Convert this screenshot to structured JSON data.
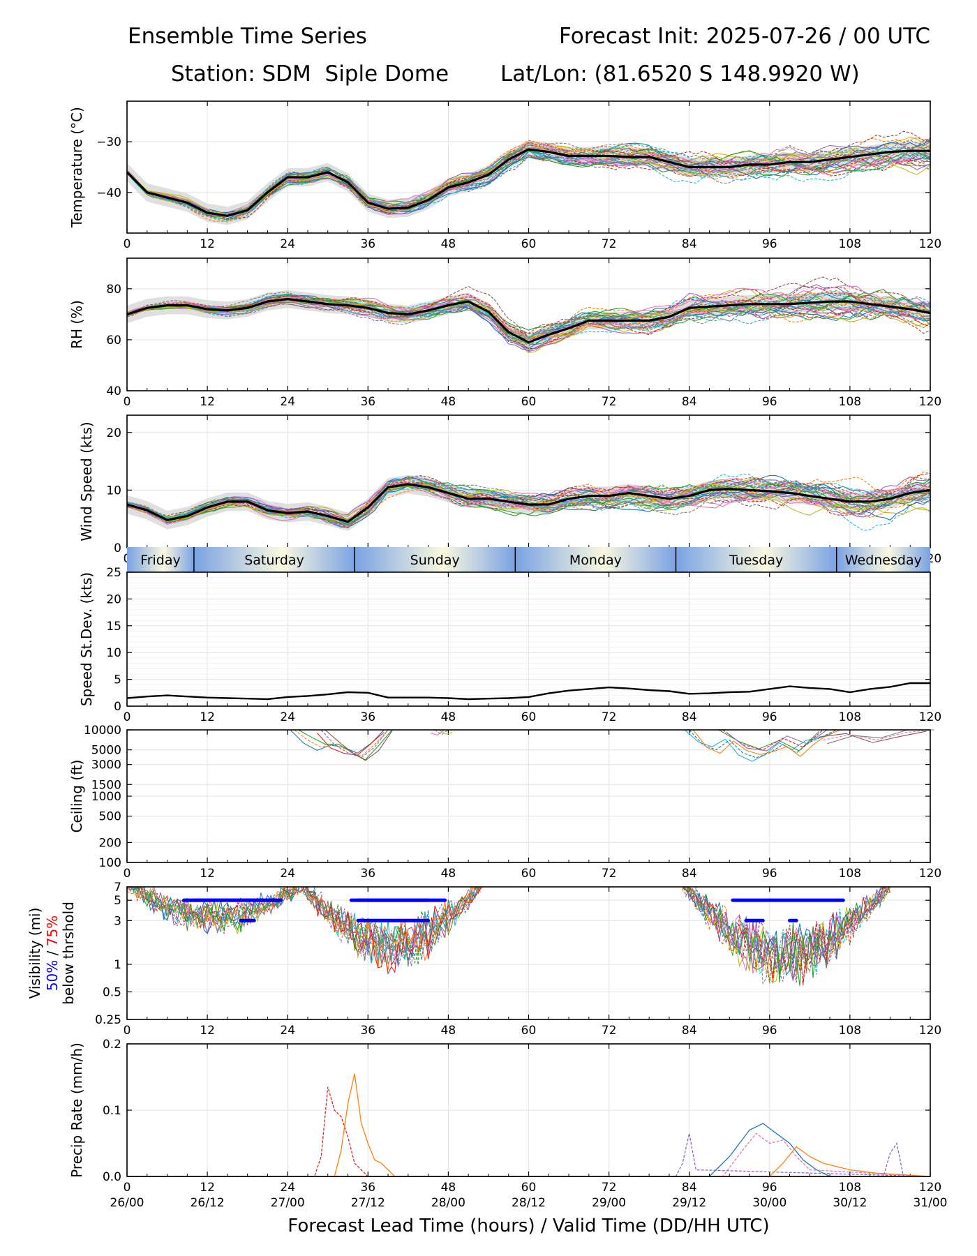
{
  "header": {
    "title_left": "Ensemble Time Series",
    "title_right": "Forecast Init: 2025-07-26 / 00 UTC",
    "station": "Station: SDM  Siple Dome",
    "latlon": "Lat/Lon: (81.6520 S 148.9920 W)"
  },
  "x_axis": {
    "label": "Forecast Lead Time (hours) / Valid Time (DD/HH UTC)",
    "ticks": [
      0,
      12,
      24,
      36,
      48,
      60,
      72,
      84,
      96,
      108,
      120
    ],
    "valid_time_labels": [
      "26/00",
      "26/12",
      "27/00",
      "27/12",
      "28/00",
      "28/12",
      "29/00",
      "29/12",
      "30/00",
      "30/12",
      "31/00"
    ],
    "range": [
      0,
      120
    ]
  },
  "colors": {
    "mean": "#000000",
    "spread": "#d9d9d9",
    "grid": "#e6e6e6",
    "vis_50": "#0000ff",
    "vis_75": "#ff0000",
    "members": [
      "#1f77b4",
      "#ff7f0e",
      "#2ca02c",
      "#d62728",
      "#9467bd",
      "#8c564b",
      "#e377c2",
      "#7f7f7f",
      "#bcbd22",
      "#17becf"
    ]
  },
  "day_band": {
    "days": [
      {
        "label": "Friday",
        "start": 0,
        "end": 10
      },
      {
        "label": "Saturday",
        "start": 10,
        "end": 34
      },
      {
        "label": "Sunday",
        "start": 34,
        "end": 58
      },
      {
        "label": "Monday",
        "start": 58,
        "end": 82
      },
      {
        "label": "Tuesday",
        "start": 82,
        "end": 106
      },
      {
        "label": "Wednesday",
        "start": 106,
        "end": 120
      }
    ]
  },
  "chart_data": [
    {
      "id": "temperature",
      "type": "line",
      "ylabel": "Temperature (°C)",
      "yticks": [
        -30,
        -40
      ],
      "ylim": [
        -48,
        -22
      ],
      "ensemble_members": 30,
      "mean": {
        "x": [
          0,
          3,
          6,
          9,
          12,
          15,
          18,
          21,
          24,
          27,
          30,
          33,
          36,
          39,
          42,
          45,
          48,
          51,
          54,
          57,
          60,
          63,
          66,
          69,
          72,
          75,
          78,
          81,
          84,
          87,
          90,
          93,
          96,
          99,
          102,
          105,
          108,
          111,
          114,
          117,
          120
        ],
        "y": [
          -36,
          -40,
          -41,
          -42,
          -44,
          -44.6,
          -43.5,
          -40,
          -37,
          -37,
          -36,
          -38,
          -42,
          -43.2,
          -43,
          -41.5,
          -39,
          -38,
          -36.5,
          -33.5,
          -31.5,
          -32,
          -32.8,
          -32.8,
          -32.8,
          -33,
          -33,
          -34,
          -35,
          -35,
          -35,
          -34.5,
          -34.5,
          -34,
          -34,
          -33.5,
          -33,
          -32.5,
          -32,
          -31.8,
          -31.8
        ]
      },
      "spread_halfwidth": 1.8
    },
    {
      "id": "rh",
      "type": "line",
      "ylabel": "RH (%)",
      "yticks": [
        40,
        60,
        80
      ],
      "ylim": [
        40,
        92
      ],
      "ensemble_members": 30,
      "mean": {
        "x": [
          0,
          3,
          6,
          9,
          12,
          15,
          18,
          21,
          24,
          27,
          30,
          33,
          36,
          39,
          42,
          45,
          48,
          51,
          54,
          57,
          60,
          63,
          66,
          69,
          72,
          75,
          78,
          81,
          84,
          87,
          90,
          93,
          96,
          99,
          102,
          105,
          108,
          111,
          114,
          117,
          120
        ],
        "y": [
          70,
          72.5,
          73.5,
          73.5,
          72,
          71.5,
          72.5,
          75,
          76,
          75,
          74,
          73.5,
          72.5,
          70.5,
          70,
          71.5,
          73.5,
          75,
          71,
          63,
          59,
          62,
          64.5,
          67.5,
          67.5,
          67.5,
          67.5,
          69,
          72.5,
          73,
          73.5,
          74,
          74,
          74,
          74.5,
          75,
          75,
          74,
          73,
          72,
          70.5
        ]
      },
      "spread_halfwidth": 3.5
    },
    {
      "id": "wind_speed",
      "type": "line",
      "ylabel": "Wind Speed (kts)",
      "yticks": [
        0,
        10,
        20
      ],
      "ylim": [
        0,
        23
      ],
      "ensemble_members": 30,
      "mean": {
        "x": [
          0,
          3,
          6,
          9,
          12,
          15,
          18,
          21,
          24,
          27,
          30,
          33,
          36,
          39,
          42,
          45,
          48,
          51,
          54,
          57,
          60,
          63,
          66,
          69,
          72,
          75,
          78,
          81,
          84,
          87,
          90,
          93,
          96,
          99,
          102,
          105,
          108,
          111,
          114,
          117,
          120
        ],
        "y": [
          7.5,
          6.5,
          4.8,
          5.5,
          7,
          8,
          8,
          6.5,
          6,
          6.3,
          5.5,
          4.5,
          7,
          10.5,
          11,
          10.5,
          9.5,
          8.5,
          8.5,
          8,
          7.5,
          7.5,
          8.5,
          9,
          9,
          9.5,
          9,
          8.5,
          9,
          10,
          10.2,
          10,
          9.8,
          9.5,
          9,
          8.5,
          8,
          8,
          8.5,
          9.5,
          10
        ]
      },
      "spread_halfwidth": 1.6
    },
    {
      "id": "speed_stdev",
      "type": "line",
      "ylabel": "Speed St.Dev. (kts)",
      "yticks": [
        0,
        5,
        10,
        15,
        20,
        25
      ],
      "ylim": [
        0,
        25
      ],
      "mean": {
        "x": [
          0,
          3,
          6,
          9,
          12,
          15,
          18,
          21,
          24,
          27,
          30,
          33,
          36,
          39,
          42,
          45,
          48,
          51,
          54,
          57,
          60,
          63,
          66,
          69,
          72,
          75,
          78,
          81,
          84,
          87,
          90,
          93,
          96,
          99,
          102,
          105,
          108,
          111,
          114,
          117,
          120
        ],
        "y": [
          1.5,
          1.8,
          2,
          1.8,
          1.6,
          1.5,
          1.4,
          1.3,
          1.7,
          1.9,
          2.2,
          2.6,
          2.5,
          1.6,
          1.6,
          1.6,
          1.5,
          1.3,
          1.4,
          1.5,
          1.7,
          2.4,
          2.9,
          3.2,
          3.5,
          3.3,
          3.0,
          2.8,
          2.3,
          2.4,
          2.6,
          2.7,
          3.2,
          3.7,
          3.4,
          3.2,
          2.6,
          3.2,
          3.6,
          4.3,
          4.3
        ]
      }
    },
    {
      "id": "ceiling",
      "type": "line",
      "ylabel": "Ceiling (ft)",
      "yscale": "log",
      "yticks": [
        10000,
        5000,
        3000,
        1500,
        1000,
        500,
        200,
        100
      ],
      "ylim": [
        100,
        10000
      ],
      "member_segments": [
        {
          "x": [
            25,
            27,
            29,
            31,
            33,
            35,
            37,
            39
          ],
          "y": [
            10000,
            7000,
            5500,
            6000,
            5000,
            4000,
            6000,
            10000
          ]
        },
        {
          "x": [
            29,
            31,
            33,
            35,
            37,
            39
          ],
          "y": [
            10000,
            6000,
            4500,
            3800,
            5500,
            10000
          ]
        },
        {
          "x": [
            46,
            47,
            48
          ],
          "y": [
            10000,
            8500,
            10000
          ]
        },
        {
          "x": [
            84,
            86,
            88,
            90,
            92,
            94,
            96,
            98,
            100,
            102,
            104,
            106
          ],
          "y": [
            10000,
            6000,
            5000,
            7000,
            4500,
            3800,
            4500,
            6000,
            4500,
            6500,
            8000,
            10000
          ]
        },
        {
          "x": [
            89,
            92,
            95,
            98,
            101,
            104
          ],
          "y": [
            10000,
            6000,
            5000,
            7500,
            5500,
            10000
          ]
        },
        {
          "x": [
            104,
            108,
            112,
            116,
            120
          ],
          "y": [
            7000,
            8500,
            7000,
            9000,
            10000
          ]
        }
      ]
    },
    {
      "id": "visibility",
      "type": "line",
      "ylabel": "Visibility (mi)",
      "ylabel_50": "50%",
      "ylabel_sep": " / ",
      "ylabel_75": "75%",
      "ylabel_below": "below thrshold",
      "yscale": "log",
      "yticks": [
        7,
        5,
        3,
        1,
        0.5,
        0.25
      ],
      "ylim": [
        0.25,
        7
      ],
      "threshold_50_segments": [
        {
          "x": [
            8.5,
            23
          ],
          "y": 5
        },
        {
          "x": [
            17,
            19
          ],
          "y": 3
        },
        {
          "x": [
            33.5,
            47.5
          ],
          "y": 5
        },
        {
          "x": [
            34.5,
            45
          ],
          "y": 3
        },
        {
          "x": [
            90.5,
            107
          ],
          "y": 5
        },
        {
          "x": [
            92.5,
            95
          ],
          "y": 3
        },
        {
          "x": [
            99,
            100
          ],
          "y": 3
        }
      ],
      "threshold_75_segments": [
        {
          "x": [
            10,
            22
          ],
          "y": 5
        },
        {
          "x": [
            34.5,
            45
          ],
          "y": 5
        }
      ]
    },
    {
      "id": "precip_rate",
      "type": "line",
      "ylabel": "Precip Rate (mm/h)",
      "yticks": [
        0.0,
        0.1,
        0.2
      ],
      "ylim": [
        0.0,
        0.2
      ],
      "member_traces": [
        {
          "x": [
            0,
            28,
            29,
            30,
            31,
            32,
            33,
            34,
            35,
            36,
            40,
            44,
            120
          ],
          "y": [
            0,
            0,
            0.03,
            0.135,
            0.1,
            0.09,
            0.06,
            0.02,
            0.01,
            0,
            0,
            0,
            0
          ]
        },
        {
          "x": [
            0,
            31,
            32,
            33,
            34,
            35,
            36,
            37,
            38,
            39,
            40,
            120
          ],
          "y": [
            0,
            0,
            0.04,
            0.11,
            0.155,
            0.08,
            0.05,
            0.025,
            0.02,
            0.01,
            0,
            0
          ]
        },
        {
          "x": [
            0,
            82,
            83,
            84,
            85,
            120
          ],
          "y": [
            0,
            0,
            0.02,
            0.065,
            0.01,
            0
          ]
        },
        {
          "x": [
            0,
            87,
            90,
            93,
            95,
            97,
            99,
            101,
            103,
            105,
            120
          ],
          "y": [
            0,
            0,
            0.03,
            0.07,
            0.08,
            0.065,
            0.05,
            0.025,
            0.01,
            0,
            0
          ]
        },
        {
          "x": [
            0,
            89,
            92,
            94,
            96,
            98,
            100,
            102,
            120
          ],
          "y": [
            0,
            0,
            0.04,
            0.065,
            0.05,
            0.055,
            0.03,
            0.01,
            0
          ]
        },
        {
          "x": [
            0,
            96,
            98,
            100,
            102,
            104,
            106,
            108,
            112,
            120
          ],
          "y": [
            0,
            0,
            0.02,
            0.045,
            0.03,
            0.02,
            0.015,
            0.01,
            0.005,
            0
          ]
        },
        {
          "x": [
            0,
            113,
            114,
            115,
            116,
            120
          ],
          "y": [
            0,
            0,
            0.035,
            0.05,
            0,
            0
          ]
        }
      ]
    }
  ]
}
